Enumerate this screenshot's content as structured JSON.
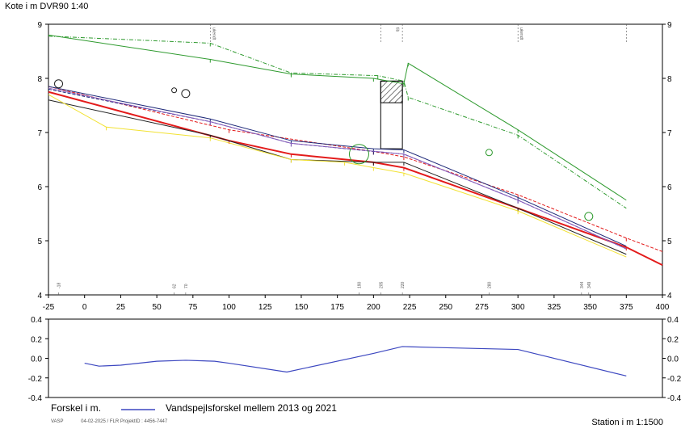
{
  "title": "Kote i m DVR90 1:40",
  "station_label": "Station i m  1:1500",
  "diff_label": "Forskel i m.",
  "diff_legend": "Vandspejlsforskel mellem 2013 og 2021",
  "footer": {
    "code": "VASP",
    "meta": "04-02-2025 / FLR  ProjektID : 4456-7447"
  },
  "colors": {
    "green": "#2e9a2e",
    "red": "#e31b1b",
    "navy": "#1f2a7a",
    "blue": "#3c47c0",
    "yellow": "#f2e233",
    "black": "#222222",
    "purple": "#8a5fbf"
  },
  "chart_data": [
    {
      "type": "line",
      "title": "Kote i m DVR90 1:40",
      "xlabel": "Station i m  1:1500",
      "ylabel": "Kote i m DVR90",
      "xlim": [
        -25,
        400
      ],
      "ylim": [
        4,
        9
      ],
      "xticks": [
        -25,
        0,
        25,
        50,
        75,
        100,
        125,
        150,
        175,
        200,
        225,
        250,
        275,
        300,
        325,
        350,
        375,
        400
      ],
      "yticks": [
        4,
        5,
        6,
        7,
        8,
        9
      ],
      "station_markers": [
        "-18",
        "62",
        "70",
        "190",
        "205",
        "220",
        "280",
        "344",
        "349"
      ],
      "top_markers": [
        "ukendt",
        "tib",
        "ukendt"
      ],
      "series": [
        {
          "color": "green",
          "style": "solid",
          "x": [
            -25,
            87,
            143,
            200,
            221,
            224,
            300,
            375
          ],
          "y": [
            8.8,
            8.35,
            8.08,
            8.0,
            7.9,
            8.28,
            7.05,
            5.75
          ]
        },
        {
          "color": "green",
          "style": "dashdot",
          "x": [
            -25,
            87,
            143,
            203,
            221,
            224,
            300,
            375
          ],
          "y": [
            8.78,
            8.65,
            8.1,
            8.05,
            7.95,
            7.65,
            6.95,
            5.6
          ]
        },
        {
          "color": "red",
          "style": "solid",
          "x": [
            -25,
            100,
            143,
            200,
            221,
            300,
            375,
            400
          ],
          "y": [
            7.75,
            6.85,
            6.6,
            6.45,
            6.35,
            5.6,
            4.88,
            4.55
          ]
        },
        {
          "color": "red",
          "style": "dashed",
          "x": [
            -25,
            100,
            200,
            221,
            300,
            375,
            400
          ],
          "y": [
            7.85,
            7.05,
            6.65,
            6.55,
            5.85,
            5.05,
            4.8
          ]
        },
        {
          "color": "navy",
          "style": "solid",
          "x": [
            -25,
            87,
            143,
            200,
            221,
            300,
            375
          ],
          "y": [
            7.85,
            7.25,
            6.85,
            6.7,
            6.68,
            5.8,
            4.9
          ]
        },
        {
          "color": "navy",
          "style": "dashed",
          "x": [
            -25,
            87,
            143,
            200,
            221,
            300,
            375
          ],
          "y": [
            7.8,
            7.2,
            6.8,
            6.65,
            6.6,
            5.75,
            4.85
          ]
        },
        {
          "color": "purple",
          "style": "solid",
          "x": [
            -25,
            87,
            143,
            221,
            300,
            375
          ],
          "y": [
            7.82,
            7.2,
            6.8,
            6.6,
            5.75,
            4.85
          ]
        },
        {
          "color": "black",
          "style": "solid",
          "x": [
            -25,
            87,
            143,
            200,
            221,
            300,
            375
          ],
          "y": [
            7.6,
            6.95,
            6.5,
            6.45,
            6.45,
            5.6,
            4.75
          ]
        },
        {
          "color": "yellow",
          "style": "solid",
          "x": [
            -25,
            15,
            87,
            143,
            180,
            200,
            221,
            300,
            375
          ],
          "y": [
            7.7,
            7.1,
            6.9,
            6.5,
            6.45,
            6.35,
            6.25,
            5.55,
            4.7
          ]
        }
      ],
      "points": [
        {
          "x": -18,
          "y": 7.9,
          "r": 5,
          "color": "black"
        },
        {
          "x": 62,
          "y": 7.78,
          "r": 3,
          "color": "black"
        },
        {
          "x": 70,
          "y": 7.72,
          "r": 5,
          "color": "black"
        },
        {
          "x": 190,
          "y": 6.6,
          "r": 12,
          "color": "green"
        },
        {
          "x": 280,
          "y": 6.63,
          "r": 4,
          "color": "green"
        },
        {
          "x": 349,
          "y": 5.45,
          "r": 5,
          "color": "green"
        }
      ],
      "structure": {
        "x": [
          205,
          220
        ],
        "y_top": 7.95,
        "y_bottom": 6.7,
        "hatch_top": 7.95,
        "hatch_bottom": 7.55
      }
    },
    {
      "type": "line",
      "title": "",
      "xlabel": "Station i m  1:1500",
      "ylabel": "Forskel i m.",
      "xlim": [
        -25,
        400
      ],
      "ylim": [
        -0.4,
        0.4
      ],
      "yticks": [
        -0.4,
        -0.2,
        0.0,
        0.2,
        0.4
      ],
      "ytick_labels_left": [
        "-0.4",
        "-0.2",
        "0.0",
        "0.2",
        "0.4"
      ],
      "ytick_labels_right": [
        "-0.4",
        "-0.2",
        "0.0",
        "0.2",
        "0.4"
      ],
      "series": [
        {
          "name": "Vandspejlsforskel mellem 2013 og 2021",
          "color": "blue",
          "x": [
            0,
            10,
            25,
            50,
            70,
            90,
            100,
            140,
            200,
            220,
            245,
            300,
            375
          ],
          "y": [
            -0.05,
            -0.08,
            -0.07,
            -0.03,
            -0.02,
            -0.03,
            -0.05,
            -0.14,
            0.05,
            0.12,
            0.11,
            0.09,
            -0.18
          ]
        }
      ]
    }
  ]
}
